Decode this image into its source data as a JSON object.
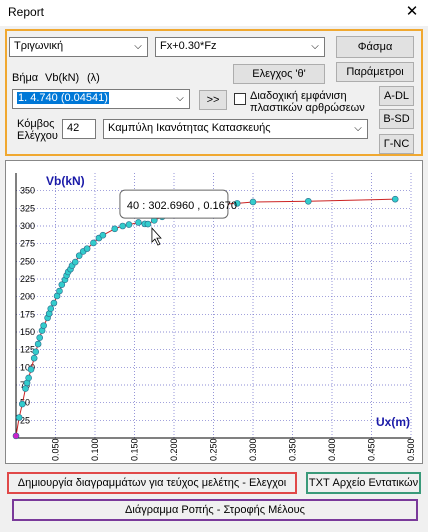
{
  "window": {
    "title": "Report",
    "close_glyph": "✕"
  },
  "controls": {
    "analysis_type": "Τριγωνική",
    "load_combo": "Fx+0.30*Fz",
    "spectrum_button": "Φάσμα",
    "check_button": "Ελεγχος 'θ'",
    "params_button": "Παράμετροι",
    "step_label": "Βήμα",
    "vb_label": "Vb(kN)",
    "lambda_label": "(λ)",
    "step_value": "1. 4.740 (0.04541)",
    "next_button": ">>",
    "sequential_label_1": "Διαδοχική εμφάνιση",
    "sequential_label_2": "πλαστικών αρθρώσεων",
    "adl_button": "A-DL",
    "bsd_button": "B-SD",
    "gnc_button": "Γ-NC",
    "node_label_1": "Κόμβος",
    "node_label_2": "Ελέγχου",
    "node_value": "42",
    "curve_type": "Καμπύλη Ικανότητας Κατασκευής"
  },
  "chart_data": {
    "type": "scatter",
    "ylabel": "Vb(kN)",
    "xlabel": "Ux(m)",
    "xlim": [
      0,
      0.5
    ],
    "ylim": [
      0,
      375
    ],
    "xticks": [
      "0.050",
      "0.100",
      "0.150",
      "0.200",
      "0.250",
      "0.300",
      "0.350",
      "0.400",
      "0.450",
      "0.500"
    ],
    "yticks": [
      "25",
      "50",
      "75",
      "100",
      "125",
      "150",
      "175",
      "200",
      "225",
      "250",
      "275",
      "300",
      "325",
      "350"
    ],
    "series": [
      {
        "x": [
          0,
          0.004,
          0.008,
          0.012,
          0.014,
          0.016,
          0.019,
          0.023,
          0.025,
          0.028,
          0.03,
          0.033,
          0.035,
          0.04,
          0.042,
          0.044,
          0.048,
          0.052,
          0.055,
          0.058,
          0.062,
          0.064,
          0.066,
          0.069,
          0.071,
          0.075,
          0.08,
          0.085,
          0.09,
          0.098,
          0.105,
          0.11,
          0.125,
          0.135,
          0.143,
          0.155,
          0.163,
          0.167,
          0.175,
          0.185,
          0.2,
          0.22,
          0.25,
          0.28,
          0.3,
          0.37,
          0.48
        ],
        "y": [
          3,
          29,
          48,
          70,
          78,
          85,
          97,
          113,
          122,
          133,
          142,
          152,
          159,
          170,
          176,
          183,
          191,
          201,
          208,
          217,
          224,
          230,
          235,
          239,
          244,
          249,
          258,
          264,
          268,
          276,
          283,
          287,
          296,
          300,
          302,
          305,
          303,
          302.696,
          308,
          313,
          319,
          324,
          330,
          332,
          334,
          335,
          338
        ]
      }
    ],
    "highlight_point": {
      "index": 37,
      "step": "40",
      "x": "0.1670",
      "y": "302.6960"
    },
    "tooltip": "40 : 302.6960 , 0.1670"
  },
  "footer": {
    "diagrams_button": "Δημιουργία διαγραμμάτων για τεύχος μελέτης - Ελεγχοι",
    "txt_button": "TXT Αρχείο Εντατικών",
    "flow_button": "Διάγραμμα Ροπής - Στροφής Μέλους"
  },
  "colors": {
    "panel_border": "#f0a830",
    "diagrams_border": "#e04848",
    "txt_border": "#3a9a7a",
    "flow_border": "#7a3a9a",
    "axis_label": "#1a1aa8",
    "curve": "#cc2222",
    "point_fill": "#33cccc",
    "first_point": "#cc22cc"
  }
}
